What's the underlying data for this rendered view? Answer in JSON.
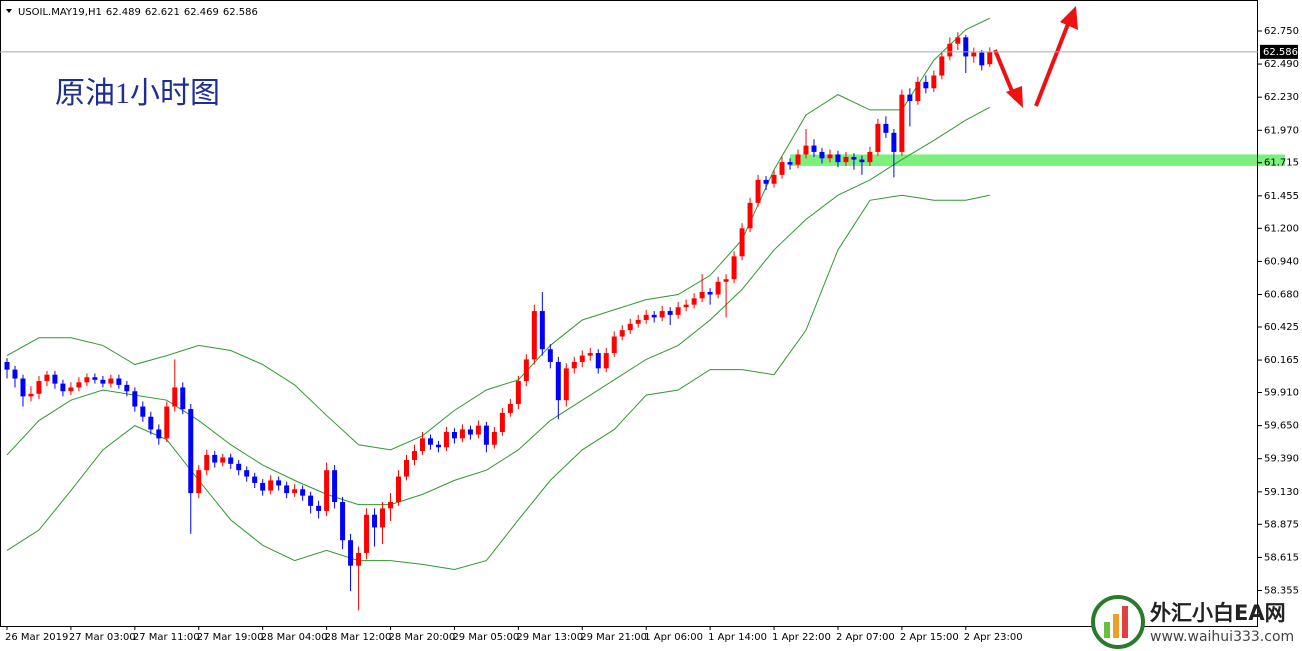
{
  "chart_data": {
    "type": "candlestick",
    "symbol": "USOIL.MAY19,H1",
    "title": "原油1小时图",
    "watermark": {
      "name": "外汇小白EA网",
      "url": "www.waihui333.com"
    },
    "colors": {
      "up": "#ff0000",
      "down": "#0000ff",
      "bands": "#2e9a2e",
      "zone": "#7cf07c"
    },
    "ylim": [
      58.084,
      62.954
    ],
    "yticks": [
      {
        "value": 62.75,
        "label": "62.750"
      },
      {
        "value": 62.49,
        "label": "62.490"
      },
      {
        "value": 62.23,
        "label": "62.230"
      },
      {
        "value": 61.97,
        "label": "61.970"
      },
      {
        "value": 61.715,
        "label": "61.715"
      },
      {
        "value": 61.455,
        "label": "61.455"
      },
      {
        "value": 61.2,
        "label": "61.200"
      },
      {
        "value": 60.94,
        "label": "60.940"
      },
      {
        "value": 60.68,
        "label": "60.680"
      },
      {
        "value": 60.425,
        "label": "60.425"
      },
      {
        "value": 60.165,
        "label": "60.165"
      },
      {
        "value": 59.91,
        "label": "59.910"
      },
      {
        "value": 59.65,
        "label": "59.650"
      },
      {
        "value": 59.39,
        "label": "59.390"
      },
      {
        "value": 59.13,
        "label": "59.130"
      },
      {
        "value": 58.875,
        "label": "58.875"
      },
      {
        "value": 58.615,
        "label": "58.615"
      },
      {
        "value": 58.355,
        "label": "58.355"
      }
    ],
    "categories": [
      "26 Mar 2019",
      null,
      null,
      null,
      null,
      null,
      null,
      null,
      "27 Mar 03:00",
      null,
      null,
      null,
      null,
      null,
      null,
      null,
      "27 Mar 11:00",
      null,
      null,
      null,
      null,
      null,
      null,
      null,
      "27 Mar 19:00",
      null,
      null,
      null,
      null,
      null,
      null,
      null,
      "28 Mar 04:00",
      null,
      null,
      null,
      null,
      null,
      null,
      null,
      "28 Mar 12:00",
      null,
      null,
      null,
      null,
      null,
      null,
      null,
      "28 Mar 20:00",
      null,
      null,
      null,
      null,
      null,
      null,
      null,
      "29 Mar 05:00",
      null,
      null,
      null,
      null,
      null,
      null,
      null,
      "29 Mar 13:00",
      null,
      null,
      null,
      null,
      null,
      null,
      null,
      "29 Mar 21:00",
      null,
      null,
      null,
      null,
      null,
      null,
      null,
      "1 Apr 06:00",
      null,
      null,
      null,
      null,
      null,
      null,
      null,
      "1 Apr 14:00",
      null,
      null,
      null,
      null,
      null,
      null,
      null,
      "1 Apr 22:00",
      null,
      null,
      null,
      null,
      null,
      null,
      null,
      "2 Apr 07:00",
      null,
      null,
      null,
      null,
      null,
      null,
      null,
      "2 Apr 15:00",
      null,
      null,
      null,
      null,
      null,
      null,
      null,
      "2 Apr 23:00",
      null,
      null,
      null
    ],
    "ohlc": [
      [
        60.15,
        60.18,
        60.02,
        60.09
      ],
      [
        60.09,
        60.12,
        59.95,
        60.02
      ],
      [
        60.02,
        60.05,
        59.8,
        59.88
      ],
      [
        59.88,
        59.96,
        59.84,
        59.9
      ],
      [
        59.9,
        60.04,
        59.86,
        60.0
      ],
      [
        60.0,
        60.08,
        59.96,
        60.05
      ],
      [
        60.05,
        60.08,
        59.94,
        59.98
      ],
      [
        59.98,
        60.01,
        59.88,
        59.92
      ],
      [
        59.92,
        59.99,
        59.89,
        59.95
      ],
      [
        59.95,
        60.03,
        59.92,
        59.99
      ],
      [
        59.99,
        60.06,
        59.96,
        60.03
      ],
      [
        60.03,
        60.06,
        59.98,
        60.01
      ],
      [
        60.01,
        60.04,
        59.95,
        59.98
      ],
      [
        59.98,
        60.05,
        59.95,
        60.02
      ],
      [
        60.02,
        60.05,
        59.94,
        59.97
      ],
      [
        59.97,
        60.0,
        59.88,
        59.92
      ],
      [
        59.92,
        59.95,
        59.76,
        59.8
      ],
      [
        59.8,
        59.84,
        59.68,
        59.72
      ],
      [
        59.72,
        59.76,
        59.58,
        59.62
      ],
      [
        59.62,
        59.66,
        59.5,
        59.55
      ],
      [
        59.55,
        59.84,
        59.52,
        59.8
      ],
      [
        59.8,
        60.17,
        59.76,
        59.95
      ],
      [
        59.95,
        59.99,
        59.74,
        59.78
      ],
      [
        59.78,
        59.82,
        58.8,
        59.12
      ],
      [
        59.12,
        59.34,
        59.08,
        59.3
      ],
      [
        59.3,
        59.46,
        59.26,
        59.42
      ],
      [
        59.42,
        59.45,
        59.32,
        59.36
      ],
      [
        59.36,
        59.43,
        59.33,
        59.4
      ],
      [
        59.4,
        59.43,
        59.31,
        59.35
      ],
      [
        59.35,
        59.38,
        59.26,
        59.3
      ],
      [
        59.3,
        59.33,
        59.21,
        59.25
      ],
      [
        59.25,
        59.28,
        59.16,
        59.2
      ],
      [
        59.2,
        59.23,
        59.1,
        59.14
      ],
      [
        59.14,
        59.26,
        59.11,
        59.22
      ],
      [
        59.22,
        59.25,
        59.14,
        59.18
      ],
      [
        59.18,
        59.21,
        59.08,
        59.12
      ],
      [
        59.12,
        59.19,
        59.09,
        59.15
      ],
      [
        59.15,
        59.18,
        59.06,
        59.1
      ],
      [
        59.1,
        59.13,
        58.96,
        59.02
      ],
      [
        59.02,
        59.06,
        58.92,
        58.98
      ],
      [
        58.98,
        59.36,
        58.94,
        59.3
      ],
      [
        59.3,
        59.34,
        59.0,
        59.05
      ],
      [
        59.05,
        59.09,
        58.68,
        58.75
      ],
      [
        58.75,
        58.8,
        58.35,
        58.55
      ],
      [
        58.55,
        58.7,
        58.2,
        58.65
      ],
      [
        58.65,
        59.0,
        58.6,
        58.95
      ],
      [
        58.95,
        59.0,
        58.7,
        58.85
      ],
      [
        58.85,
        59.05,
        58.72,
        59.0
      ],
      [
        59.0,
        59.12,
        58.9,
        59.05
      ],
      [
        59.05,
        59.3,
        59.02,
        59.25
      ],
      [
        59.25,
        59.42,
        59.22,
        59.38
      ],
      [
        59.38,
        59.5,
        59.34,
        59.45
      ],
      [
        59.45,
        59.6,
        59.42,
        59.55
      ],
      [
        59.55,
        59.58,
        59.46,
        59.5
      ],
      [
        59.5,
        59.53,
        59.44,
        59.48
      ],
      [
        59.48,
        59.64,
        59.45,
        59.6
      ],
      [
        59.6,
        59.63,
        59.51,
        59.55
      ],
      [
        59.55,
        59.66,
        59.52,
        59.62
      ],
      [
        59.62,
        59.65,
        59.54,
        59.58
      ],
      [
        59.58,
        59.69,
        59.55,
        59.65
      ],
      [
        59.65,
        59.68,
        59.44,
        59.5
      ],
      [
        59.5,
        59.64,
        59.47,
        59.6
      ],
      [
        59.6,
        59.79,
        59.57,
        59.75
      ],
      [
        59.75,
        59.86,
        59.72,
        59.82
      ],
      [
        59.82,
        60.04,
        59.78,
        60.0
      ],
      [
        60.0,
        60.21,
        59.96,
        60.17
      ],
      [
        60.17,
        60.6,
        60.13,
        60.55
      ],
      [
        60.55,
        60.7,
        60.2,
        60.25
      ],
      [
        60.25,
        60.29,
        60.1,
        60.15
      ],
      [
        60.15,
        60.19,
        59.7,
        59.85
      ],
      [
        59.85,
        60.14,
        59.8,
        60.1
      ],
      [
        60.1,
        60.19,
        60.06,
        60.15
      ],
      [
        60.15,
        60.24,
        60.11,
        60.2
      ],
      [
        60.2,
        60.26,
        60.16,
        60.22
      ],
      [
        60.22,
        60.25,
        60.06,
        60.1
      ],
      [
        60.1,
        60.26,
        60.07,
        60.22
      ],
      [
        60.22,
        60.39,
        60.19,
        60.35
      ],
      [
        60.35,
        60.44,
        60.32,
        60.4
      ],
      [
        60.4,
        60.49,
        60.37,
        60.45
      ],
      [
        60.45,
        60.52,
        60.42,
        60.48
      ],
      [
        60.48,
        60.56,
        60.45,
        60.52
      ],
      [
        60.52,
        60.55,
        60.46,
        60.5
      ],
      [
        60.5,
        60.59,
        60.47,
        60.55
      ],
      [
        60.55,
        60.58,
        60.44,
        60.52
      ],
      [
        60.52,
        60.62,
        60.49,
        60.58
      ],
      [
        60.58,
        60.64,
        60.55,
        60.6
      ],
      [
        60.6,
        60.69,
        60.57,
        60.65
      ],
      [
        60.65,
        60.84,
        60.62,
        60.7
      ],
      [
        60.7,
        60.73,
        60.6,
        60.68
      ],
      [
        60.68,
        60.82,
        60.65,
        60.78
      ],
      [
        60.78,
        60.84,
        60.5,
        60.8
      ],
      [
        60.8,
        61.02,
        60.77,
        60.98
      ],
      [
        60.98,
        61.24,
        60.95,
        61.2
      ],
      [
        61.2,
        61.44,
        61.17,
        61.4
      ],
      [
        61.4,
        61.62,
        61.37,
        61.58
      ],
      [
        61.58,
        61.61,
        61.5,
        61.55
      ],
      [
        61.55,
        61.66,
        61.52,
        61.62
      ],
      [
        61.62,
        61.76,
        61.59,
        61.72
      ],
      [
        61.72,
        61.75,
        61.66,
        61.7
      ],
      [
        61.7,
        61.82,
        61.67,
        61.78
      ],
      [
        61.78,
        61.98,
        61.75,
        61.85
      ],
      [
        61.85,
        61.9,
        61.76,
        61.8
      ],
      [
        61.8,
        61.83,
        61.71,
        61.75
      ],
      [
        61.75,
        61.82,
        61.72,
        61.78
      ],
      [
        61.78,
        61.81,
        61.68,
        61.72
      ],
      [
        61.72,
        61.8,
        61.69,
        61.76
      ],
      [
        61.76,
        61.79,
        61.66,
        61.74
      ],
      [
        61.74,
        61.77,
        61.62,
        61.72
      ],
      [
        61.72,
        61.84,
        61.69,
        61.8
      ],
      [
        61.8,
        62.06,
        61.77,
        62.02
      ],
      [
        62.02,
        62.08,
        61.91,
        61.95
      ],
      [
        61.95,
        61.98,
        61.6,
        61.8
      ],
      [
        61.8,
        62.29,
        61.77,
        62.25
      ],
      [
        62.25,
        62.3,
        62.0,
        62.2
      ],
      [
        62.2,
        62.39,
        62.17,
        62.35
      ],
      [
        62.35,
        62.4,
        62.26,
        62.3
      ],
      [
        62.3,
        62.44,
        62.27,
        62.4
      ],
      [
        62.4,
        62.59,
        62.37,
        62.55
      ],
      [
        62.55,
        62.7,
        62.52,
        62.65
      ],
      [
        62.65,
        62.74,
        62.6,
        62.7
      ],
      [
        62.7,
        62.72,
        62.42,
        62.55
      ],
      [
        62.55,
        62.62,
        62.5,
        62.58
      ],
      [
        62.58,
        62.6,
        62.44,
        62.48
      ],
      [
        62.489,
        62.621,
        62.469,
        62.586
      ]
    ],
    "bands": {
      "x": [
        0,
        4,
        8,
        12,
        16,
        20,
        24,
        28,
        32,
        36,
        40,
        44,
        48,
        52,
        56,
        60,
        64,
        68,
        72,
        76,
        80,
        84,
        88,
        92,
        96,
        100,
        104,
        108,
        112,
        116,
        120,
        123
      ],
      "upper": [
        60.2,
        60.34,
        60.34,
        60.28,
        60.13,
        60.2,
        60.28,
        60.24,
        60.13,
        59.97,
        59.73,
        59.5,
        59.46,
        59.57,
        59.77,
        59.93,
        60.01,
        60.28,
        60.48,
        60.56,
        60.64,
        60.68,
        60.83,
        61.11,
        61.66,
        62.09,
        62.25,
        62.13,
        62.13,
        62.52,
        62.76,
        62.85
      ],
      "middle": [
        59.42,
        59.69,
        59.85,
        59.93,
        59.89,
        59.85,
        59.69,
        59.5,
        59.34,
        59.22,
        59.11,
        59.03,
        59.03,
        59.11,
        59.22,
        59.3,
        59.46,
        59.69,
        59.85,
        60.01,
        60.17,
        60.28,
        60.48,
        60.72,
        61.03,
        61.27,
        61.46,
        61.58,
        61.74,
        61.89,
        62.05,
        62.15
      ],
      "lower": [
        58.67,
        58.83,
        59.14,
        59.46,
        59.65,
        59.54,
        59.22,
        58.91,
        58.71,
        58.59,
        58.67,
        58.59,
        58.59,
        58.56,
        58.52,
        58.59,
        58.91,
        59.22,
        59.46,
        59.62,
        59.89,
        59.93,
        60.09,
        60.09,
        60.05,
        60.4,
        61.03,
        61.42,
        61.46,
        61.42,
        61.42,
        61.46
      ]
    },
    "zone": [
      61.69,
      61.78
    ]
  }
}
